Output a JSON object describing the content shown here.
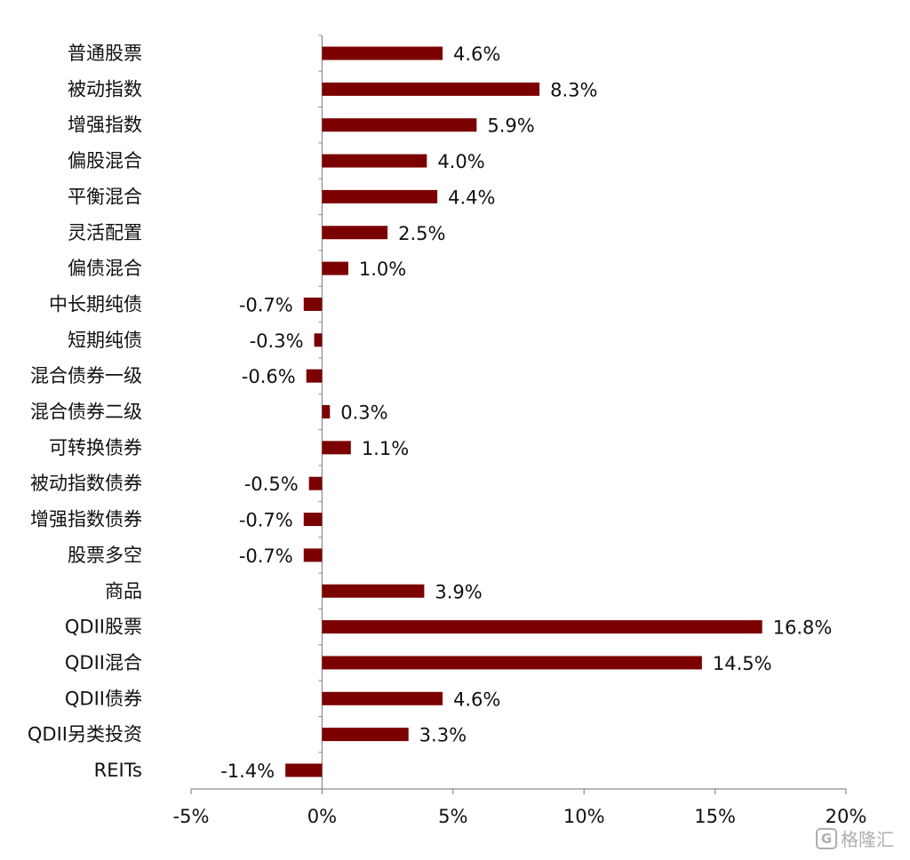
{
  "chart_data": {
    "type": "bar",
    "orientation": "horizontal",
    "categories": [
      "普通股票",
      "被动指数",
      "增强指数",
      "偏股混合",
      "平衡混合",
      "灵活配置",
      "偏债混合",
      "中长期纯债",
      "短期纯债",
      "混合债券一级",
      "混合债券二级",
      "可转换债券",
      "被动指数债券",
      "增强指数债券",
      "股票多空",
      "商品",
      "QDII股票",
      "QDII混合",
      "QDII债券",
      "QDII另类投资",
      "REITs"
    ],
    "values": [
      4.6,
      8.3,
      5.9,
      4.0,
      4.4,
      2.5,
      1.0,
      -0.7,
      -0.3,
      -0.6,
      0.3,
      1.1,
      -0.5,
      -0.7,
      -0.7,
      3.9,
      16.8,
      14.5,
      4.6,
      3.3,
      -1.4
    ],
    "value_labels": [
      "4.6%",
      "8.3%",
      "5.9%",
      "4.0%",
      "4.4%",
      "2.5%",
      "1.0%",
      "-0.7%",
      "-0.3%",
      "-0.6%",
      "0.3%",
      "1.1%",
      "-0.5%",
      "-0.7%",
      "-0.7%",
      "3.9%",
      "16.8%",
      "14.5%",
      "4.6%",
      "3.3%",
      "-1.4%"
    ],
    "xlim": [
      -5,
      20
    ],
    "xticks": [
      -5,
      0,
      5,
      10,
      15,
      20
    ],
    "xtick_labels": [
      "-5%",
      "0%",
      "5%",
      "10%",
      "15%",
      "20%"
    ],
    "bar_color": "#7b0000",
    "grid": false,
    "legend": "none"
  },
  "watermark": {
    "icon": "G",
    "text": "格隆汇"
  }
}
